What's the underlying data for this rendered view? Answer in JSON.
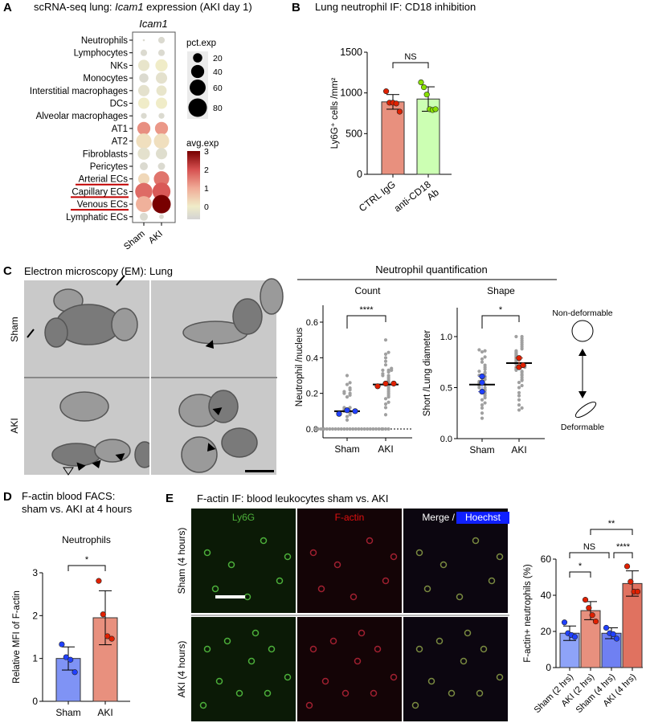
{
  "panels": {
    "A": {
      "label": "A",
      "title_pre": "scRNA-seq lung: ",
      "title_gene": "Icam1",
      "title_post": " expression (AKI day 1)"
    },
    "B": {
      "label": "B",
      "title": "Lung neutrophil IF: CD18 inhibition"
    },
    "C": {
      "label": "C",
      "title": "Electron microscopy (EM): Lung",
      "row_labels": [
        "Sham",
        "AKI"
      ],
      "quant_title": "Neutrophil quantification",
      "deformability": {
        "top": "Non-deformable",
        "bottom": "Deformable"
      }
    },
    "D": {
      "label": "D",
      "title_line1": "F-actin blood FACS:",
      "title_line2": "sham vs. AKI at 4 hours"
    },
    "E": {
      "label": "E",
      "title": "F-actin IF: blood leukocytes sham vs. AKI",
      "channels": [
        "Ly6G",
        "F-actin",
        "Merge / ",
        "Hoechst"
      ],
      "row_labels": [
        "Sham (4 hours)",
        "AKI (4 hours)"
      ]
    }
  },
  "colors": {
    "sham_blue": "#7f93f5",
    "aki_red": "#e8907e",
    "ctrl_red": "#e8907e",
    "cd18_green": "#ccffb3",
    "point_gray": "#a0a0a0",
    "underline": "#c00000"
  },
  "chart_data": [
    {
      "id": "A",
      "type": "dotplot",
      "title": "Icam1",
      "columns": [
        "Sham",
        "AKI"
      ],
      "rows": [
        "Neutrophils",
        "Lymphocytes",
        "NKs",
        "Monocytes",
        "Interstitial macrophages",
        "DCs",
        "Alveolar macrophages",
        "AT1",
        "AT2",
        "Fibroblasts",
        "Pericytes",
        "Arterial ECs",
        "Capillary ECs",
        "Venous ECs",
        "Lymphatic ECs"
      ],
      "highlighted_rows": [
        "Arterial ECs",
        "Capillary ECs",
        "Venous ECs"
      ],
      "pct_exp": [
        [
          1,
          10
        ],
        [
          10,
          10
        ],
        [
          30,
          35
        ],
        [
          20,
          30
        ],
        [
          30,
          25
        ],
        [
          30,
          30
        ],
        [
          8,
          8
        ],
        [
          40,
          40
        ],
        [
          55,
          55
        ],
        [
          35,
          30
        ],
        [
          15,
          12
        ],
        [
          30,
          55
        ],
        [
          70,
          75
        ],
        [
          60,
          80
        ],
        [
          15,
          5
        ]
      ],
      "avg_exp": [
        [
          -0.5,
          -0.5
        ],
        [
          -0.5,
          -0.5
        ],
        [
          -0.2,
          0
        ],
        [
          -0.5,
          -0.3
        ],
        [
          -0.3,
          -0.2
        ],
        [
          0,
          0
        ],
        [
          -0.5,
          -0.5
        ],
        [
          1.3,
          1.2
        ],
        [
          0.2,
          0.2
        ],
        [
          -0.3,
          -0.4
        ],
        [
          -0.5,
          -0.5
        ],
        [
          0.3,
          1.6
        ],
        [
          1.7,
          1.9
        ],
        [
          0.9,
          3.0
        ],
        [
          -0.5,
          -0.5
        ]
      ],
      "size_legend": {
        "title": "pct.exp",
        "values": [
          20,
          40,
          60,
          80
        ]
      },
      "color_legend": {
        "title": "avg.exp",
        "ticks": [
          3,
          2,
          1,
          0
        ],
        "range": [
          -0.7,
          3
        ]
      }
    },
    {
      "id": "B",
      "type": "bar",
      "ylabel": "Ly6G⁺ cells /mm²",
      "ylim": [
        0,
        1500
      ],
      "yticks": [
        "0",
        "500",
        "1000",
        "1500"
      ],
      "categories": [
        "CTRL IgG",
        "anti-CD18 Ab"
      ],
      "category_lines": [
        [
          "CTRL IgG"
        ],
        [
          "anti-CD18",
          "Ab"
        ]
      ],
      "means": [
        890,
        925
      ],
      "sd": [
        90,
        150
      ],
      "points": [
        [
          1020,
          880,
          880,
          870,
          770
        ],
        [
          1130,
          1070,
          980,
          800,
          790,
          800
        ]
      ],
      "significance": [
        {
          "pair": [
            0,
            1
          ],
          "label": "NS"
        }
      ]
    },
    {
      "id": "C-count",
      "type": "scatter",
      "title": "Count",
      "ylabel": "Neutrophil /nucleus",
      "ylim": [
        0,
        0.7
      ],
      "yticks": [
        "0.0",
        "0.2",
        "0.4",
        "0.6"
      ],
      "categories": [
        "Sham",
        "AKI"
      ],
      "medians": [
        0.1,
        0.25
      ],
      "cells": [
        [
          0,
          0,
          0,
          0,
          0,
          0,
          0,
          0,
          0,
          0,
          0,
          0,
          0,
          0,
          0,
          0,
          0,
          0,
          0,
          0,
          0,
          0,
          0,
          0,
          0.05,
          0.07,
          0.08,
          0.09,
          0.1,
          0.1,
          0.11,
          0.12,
          0.12,
          0.18,
          0.19,
          0.2,
          0.2,
          0.21,
          0.22,
          0.23,
          0.25,
          0.26,
          0.3
        ],
        [
          0,
          0,
          0,
          0.08,
          0.12,
          0.14,
          0.15,
          0.17,
          0.18,
          0.19,
          0.2,
          0.21,
          0.22,
          0.23,
          0.24,
          0.25,
          0.26,
          0.27,
          0.28,
          0.29,
          0.3,
          0.3,
          0.31,
          0.32,
          0.33,
          0.33,
          0.33,
          0.34,
          0.36,
          0.38,
          0.4,
          0.42,
          0.43,
          0.5
        ]
      ],
      "animal_means": [
        [
          0.085,
          0.105,
          0.1
        ],
        [
          0.24,
          0.255,
          0.255
        ]
      ],
      "significance": [
        {
          "pair": [
            0,
            1
          ],
          "label": "****"
        }
      ]
    },
    {
      "id": "C-shape",
      "type": "scatter",
      "title": "Shape",
      "ylabel": "Short /Lung diameter",
      "ylim": [
        0,
        1.25
      ],
      "yticks": [
        "0.0",
        "0.5",
        "1.0"
      ],
      "categories": [
        "Sham",
        "AKI"
      ],
      "medians": [
        0.53,
        0.74
      ],
      "cells": [
        [
          0.2,
          0.25,
          0.3,
          0.33,
          0.35,
          0.38,
          0.4,
          0.42,
          0.44,
          0.45,
          0.47,
          0.48,
          0.5,
          0.5,
          0.52,
          0.53,
          0.54,
          0.55,
          0.56,
          0.58,
          0.6,
          0.61,
          0.62,
          0.64,
          0.65,
          0.66,
          0.68,
          0.7,
          0.72,
          0.75,
          0.78,
          0.8,
          0.85,
          0.86,
          0.87
        ],
        [
          0.28,
          0.3,
          0.33,
          0.38,
          0.42,
          0.45,
          0.5,
          0.52,
          0.55,
          0.57,
          0.58,
          0.6,
          0.62,
          0.63,
          0.65,
          0.66,
          0.67,
          0.68,
          0.69,
          0.7,
          0.7,
          0.71,
          0.72,
          0.73,
          0.74,
          0.75,
          0.76,
          0.77,
          0.78,
          0.79,
          0.8,
          0.81,
          0.82,
          0.83,
          0.84,
          0.85,
          0.86,
          0.88,
          0.9,
          0.92,
          0.94,
          0.96,
          0.98,
          1.0,
          1.0
        ]
      ],
      "animal_means": [
        [
          0.46,
          0.55,
          0.61
        ],
        [
          0.7,
          0.72,
          0.79
        ]
      ],
      "significance": [
        {
          "pair": [
            0,
            1
          ],
          "label": "*"
        }
      ]
    },
    {
      "id": "D",
      "type": "bar",
      "title": "Neutrophils",
      "ylabel": "Relative MFI of F-actin",
      "ylim": [
        0,
        3
      ],
      "yticks": [
        "0",
        "1",
        "2",
        "3"
      ],
      "categories": [
        "Sham",
        "AKI"
      ],
      "means": [
        1.0,
        1.95
      ],
      "sd": [
        0.27,
        0.63
      ],
      "points": [
        [
          1.33,
          1.03,
          0.97,
          0.68
        ],
        [
          2.81,
          2.03,
          1.52,
          1.46
        ]
      ],
      "significance": [
        {
          "pair": [
            0,
            1
          ],
          "label": "*"
        }
      ]
    },
    {
      "id": "E",
      "type": "bar",
      "ylabel": "F-actin+ neutrophils (%)",
      "ylim": [
        0,
        60
      ],
      "yticks": [
        "0",
        "20",
        "40",
        "60"
      ],
      "categories": [
        "Sham (2 hrs)",
        "AKI (2 hrs)",
        "Sham (4 hrs)",
        "AKI (4 hrs)"
      ],
      "means": [
        19,
        31.5,
        19,
        46.5
      ],
      "sd": [
        4,
        5,
        3,
        7
      ],
      "points": [
        [
          25,
          19,
          18,
          17
        ],
        [
          37.5,
          33,
          29,
          25.5
        ],
        [
          22,
          19,
          18.5,
          16
        ],
        [
          56,
          47.5,
          42,
          42
        ]
      ],
      "significance": [
        {
          "pair": [
            0,
            1
          ],
          "label": "*"
        },
        {
          "pair": [
            0,
            2
          ],
          "label": "NS"
        },
        {
          "pair": [
            2,
            3
          ],
          "label": "****"
        },
        {
          "pair": [
            1,
            3
          ],
          "label": "**"
        }
      ]
    }
  ]
}
